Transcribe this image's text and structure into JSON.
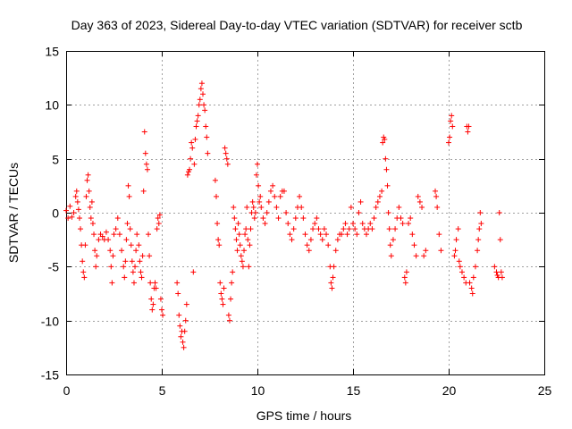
{
  "chart_data": {
    "type": "scatter",
    "title": "Day 363 of 2023, Sidereal Day-to-day VTEC variation (SDTVAR) for receiver sctb",
    "xlabel": "GPS time / hours",
    "ylabel": "SDTVAR / TECUs",
    "xlim": [
      0,
      25
    ],
    "ylim": [
      -15,
      15
    ],
    "grid": true,
    "marker": "plus",
    "color": "#ff0000",
    "x_ticks": [
      0,
      5,
      10,
      15,
      20,
      25
    ],
    "x_tick_labels": [
      "0",
      "5",
      "10",
      "15",
      "20",
      "25"
    ],
    "y_ticks": [
      -15,
      -10,
      -5,
      0,
      5,
      10,
      15
    ],
    "y_tick_labels": [
      "-15",
      "-10",
      "-5",
      "0",
      "5",
      "10",
      "15"
    ],
    "series": [
      {
        "name": "sctb",
        "points": [
          [
            0.0,
            0.2
          ],
          [
            0.1,
            -0.5
          ],
          [
            0.2,
            0.6
          ],
          [
            0.3,
            -0.4
          ],
          [
            0.4,
            0.0
          ],
          [
            0.5,
            1.5
          ],
          [
            0.55,
            2.0
          ],
          [
            0.6,
            1.0
          ],
          [
            0.65,
            0.3
          ],
          [
            0.7,
            -0.5
          ],
          [
            0.75,
            -1.5
          ],
          [
            0.8,
            -3.0
          ],
          [
            0.85,
            -4.5
          ],
          [
            0.9,
            -5.5
          ],
          [
            0.95,
            -6.0
          ],
          [
            1.0,
            -3.0
          ],
          [
            1.05,
            1.5
          ],
          [
            1.1,
            3.0
          ],
          [
            1.15,
            3.5
          ],
          [
            1.2,
            2.0
          ],
          [
            1.25,
            0.5
          ],
          [
            1.3,
            -0.5
          ],
          [
            1.35,
            1.0
          ],
          [
            1.4,
            -1.0
          ],
          [
            1.45,
            -2.0
          ],
          [
            1.5,
            -3.5
          ],
          [
            1.55,
            -5.0
          ],
          [
            1.6,
            -4.0
          ],
          [
            1.7,
            -2.5
          ],
          [
            1.8,
            -2.0
          ],
          [
            1.9,
            -2.2
          ],
          [
            2.0,
            -2.5
          ],
          [
            2.1,
            -1.8
          ],
          [
            2.2,
            -2.5
          ],
          [
            2.3,
            -3.5
          ],
          [
            2.35,
            -5.0
          ],
          [
            2.4,
            -6.5
          ],
          [
            2.45,
            -4.0
          ],
          [
            2.5,
            -2.0
          ],
          [
            2.6,
            -1.5
          ],
          [
            2.7,
            -0.5
          ],
          [
            2.8,
            -2.0
          ],
          [
            2.9,
            -3.5
          ],
          [
            3.0,
            -5.0
          ],
          [
            3.05,
            -6.0
          ],
          [
            3.1,
            -4.5
          ],
          [
            3.15,
            -2.5
          ],
          [
            3.2,
            -1.0
          ],
          [
            3.25,
            2.5
          ],
          [
            3.3,
            1.5
          ],
          [
            3.35,
            -1.5
          ],
          [
            3.4,
            -3.0
          ],
          [
            3.45,
            -4.5
          ],
          [
            3.5,
            -5.5
          ],
          [
            3.55,
            -6.5
          ],
          [
            3.6,
            -5.0
          ],
          [
            3.65,
            -3.5
          ],
          [
            3.7,
            -2.0
          ],
          [
            3.8,
            -3.0
          ],
          [
            3.85,
            -4.5
          ],
          [
            3.9,
            -5.5
          ],
          [
            3.95,
            -6.0
          ],
          [
            4.0,
            -4.0
          ],
          [
            4.05,
            2.0
          ],
          [
            4.1,
            7.5
          ],
          [
            4.15,
            5.5
          ],
          [
            4.2,
            4.5
          ],
          [
            4.25,
            4.0
          ],
          [
            4.3,
            -2.0
          ],
          [
            4.35,
            -4.0
          ],
          [
            4.4,
            -6.5
          ],
          [
            4.45,
            -8.0
          ],
          [
            4.5,
            -9.0
          ],
          [
            4.55,
            -8.5
          ],
          [
            4.6,
            -7.0
          ],
          [
            4.65,
            -6.5
          ],
          [
            4.7,
            -7.0
          ],
          [
            4.75,
            -1.5
          ],
          [
            4.8,
            -0.5
          ],
          [
            4.85,
            -1.0
          ],
          [
            4.9,
            -0.2
          ],
          [
            4.95,
            -8.0
          ],
          [
            5.0,
            -9.0
          ],
          [
            5.05,
            -9.5
          ],
          [
            5.8,
            -6.5
          ],
          [
            5.85,
            -7.5
          ],
          [
            5.9,
            -9.5
          ],
          [
            5.95,
            -10.5
          ],
          [
            6.0,
            -11.5
          ],
          [
            6.05,
            -11.0
          ],
          [
            6.1,
            -12.0
          ],
          [
            6.15,
            -12.5
          ],
          [
            6.2,
            -11.0
          ],
          [
            6.25,
            -10.0
          ],
          [
            6.3,
            -8.5
          ],
          [
            6.35,
            3.5
          ],
          [
            6.4,
            3.8
          ],
          [
            6.45,
            4.0
          ],
          [
            6.5,
            5.0
          ],
          [
            6.55,
            6.5
          ],
          [
            6.6,
            6.0
          ],
          [
            6.65,
            -5.5
          ],
          [
            6.7,
            4.5
          ],
          [
            6.75,
            6.8
          ],
          [
            6.8,
            8.0
          ],
          [
            6.85,
            8.5
          ],
          [
            6.9,
            9.0
          ],
          [
            6.95,
            10.0
          ],
          [
            7.0,
            10.5
          ],
          [
            7.05,
            11.5
          ],
          [
            7.1,
            12.0
          ],
          [
            7.15,
            11.0
          ],
          [
            7.2,
            10.0
          ],
          [
            7.25,
            9.5
          ],
          [
            7.3,
            8.0
          ],
          [
            7.35,
            7.0
          ],
          [
            7.4,
            5.5
          ],
          [
            7.8,
            3.0
          ],
          [
            7.85,
            1.5
          ],
          [
            7.9,
            -1.0
          ],
          [
            7.95,
            -2.5
          ],
          [
            8.0,
            -3.0
          ],
          [
            8.05,
            -6.5
          ],
          [
            8.1,
            -7.5
          ],
          [
            8.15,
            -8.0
          ],
          [
            8.2,
            -8.5
          ],
          [
            8.25,
            -7.0
          ],
          [
            8.3,
            6.0
          ],
          [
            8.35,
            5.5
          ],
          [
            8.4,
            5.0
          ],
          [
            8.45,
            4.5
          ],
          [
            8.5,
            -9.5
          ],
          [
            8.55,
            -10.0
          ],
          [
            8.6,
            -8.0
          ],
          [
            8.65,
            -6.5
          ],
          [
            8.7,
            -5.5
          ],
          [
            8.75,
            0.5
          ],
          [
            8.8,
            -0.5
          ],
          [
            8.85,
            -1.5
          ],
          [
            8.9,
            -2.5
          ],
          [
            8.95,
            -3.5
          ],
          [
            9.0,
            -1.0
          ],
          [
            9.05,
            -2.0
          ],
          [
            9.1,
            -3.0
          ],
          [
            9.15,
            -4.0
          ],
          [
            9.2,
            -4.5
          ],
          [
            9.25,
            -5.0
          ],
          [
            9.3,
            -3.5
          ],
          [
            9.35,
            -2.0
          ],
          [
            9.4,
            -1.5
          ],
          [
            9.45,
            0.5
          ],
          [
            9.5,
            -2.5
          ],
          [
            9.55,
            -5.0
          ],
          [
            9.6,
            -3.0
          ],
          [
            9.65,
            -1.5
          ],
          [
            9.7,
            0.0
          ],
          [
            9.75,
            1.0
          ],
          [
            9.8,
            0.5
          ],
          [
            9.85,
            -0.5
          ],
          [
            9.9,
            0.0
          ],
          [
            9.95,
            3.5
          ],
          [
            10.0,
            4.5
          ],
          [
            10.05,
            2.5
          ],
          [
            10.1,
            1.0
          ],
          [
            10.15,
            1.5
          ],
          [
            10.2,
            0.5
          ],
          [
            10.3,
            -0.5
          ],
          [
            10.4,
            -1.0
          ],
          [
            10.5,
            0.0
          ],
          [
            10.6,
            1.0
          ],
          [
            10.7,
            2.0
          ],
          [
            10.8,
            2.5
          ],
          [
            10.9,
            1.5
          ],
          [
            11.0,
            0.5
          ],
          [
            11.1,
            -0.5
          ],
          [
            11.2,
            1.5
          ],
          [
            11.3,
            2.0
          ],
          [
            11.4,
            2.0
          ],
          [
            11.5,
            0.0
          ],
          [
            11.6,
            -1.0
          ],
          [
            11.7,
            -2.0
          ],
          [
            11.8,
            -2.5
          ],
          [
            11.9,
            -1.5
          ],
          [
            12.0,
            -0.5
          ],
          [
            12.1,
            0.5
          ],
          [
            12.2,
            1.5
          ],
          [
            12.3,
            0.5
          ],
          [
            12.4,
            -0.5
          ],
          [
            12.5,
            -2.0
          ],
          [
            12.6,
            -3.0
          ],
          [
            12.7,
            -3.5
          ],
          [
            12.8,
            -2.5
          ],
          [
            12.9,
            -1.5
          ],
          [
            13.0,
            -1.0
          ],
          [
            13.1,
            -0.5
          ],
          [
            13.2,
            -1.5
          ],
          [
            13.3,
            -2.0
          ],
          [
            13.4,
            -2.5
          ],
          [
            13.5,
            -1.5
          ],
          [
            13.6,
            -2.0
          ],
          [
            13.7,
            -3.0
          ],
          [
            13.8,
            -5.0
          ],
          [
            13.85,
            -6.5
          ],
          [
            13.9,
            -7.0
          ],
          [
            13.95,
            -6.0
          ],
          [
            14.0,
            -5.0
          ],
          [
            14.1,
            -3.5
          ],
          [
            14.2,
            -2.5
          ],
          [
            14.3,
            -2.0
          ],
          [
            14.4,
            -2.0
          ],
          [
            14.5,
            -1.5
          ],
          [
            14.6,
            -1.0
          ],
          [
            14.7,
            -2.0
          ],
          [
            14.8,
            -1.5
          ],
          [
            14.9,
            0.5
          ],
          [
            15.0,
            -1.0
          ],
          [
            15.1,
            -1.5
          ],
          [
            15.2,
            -2.0
          ],
          [
            15.3,
            0.0
          ],
          [
            15.4,
            1.0
          ],
          [
            15.5,
            -1.0
          ],
          [
            15.6,
            -1.5
          ],
          [
            15.7,
            -2.0
          ],
          [
            15.8,
            -1.5
          ],
          [
            15.9,
            -1.0
          ],
          [
            16.0,
            -1.5
          ],
          [
            16.1,
            -0.5
          ],
          [
            16.2,
            0.5
          ],
          [
            16.3,
            1.0
          ],
          [
            16.4,
            1.5
          ],
          [
            16.5,
            2.0
          ],
          [
            16.55,
            6.5
          ],
          [
            16.6,
            7.0
          ],
          [
            16.65,
            6.8
          ],
          [
            16.7,
            5.0
          ],
          [
            16.75,
            4.0
          ],
          [
            16.8,
            2.5
          ],
          [
            16.85,
            0.0
          ],
          [
            16.9,
            -1.5
          ],
          [
            16.95,
            -3.0
          ],
          [
            17.0,
            -4.0
          ],
          [
            17.1,
            -2.5
          ],
          [
            17.2,
            -1.5
          ],
          [
            17.3,
            -0.5
          ],
          [
            17.4,
            0.5
          ],
          [
            17.5,
            -0.5
          ],
          [
            17.6,
            -1.0
          ],
          [
            17.7,
            -6.0
          ],
          [
            17.75,
            -6.5
          ],
          [
            17.8,
            -5.5
          ],
          [
            17.9,
            -1.0
          ],
          [
            18.0,
            -0.5
          ],
          [
            18.1,
            -2.0
          ],
          [
            18.2,
            -3.0
          ],
          [
            18.3,
            -4.0
          ],
          [
            18.4,
            1.5
          ],
          [
            18.5,
            1.0
          ],
          [
            18.6,
            0.5
          ],
          [
            18.7,
            -4.0
          ],
          [
            18.8,
            -3.5
          ],
          [
            19.3,
            2.0
          ],
          [
            19.35,
            1.5
          ],
          [
            19.4,
            0.5
          ],
          [
            19.5,
            -2.0
          ],
          [
            19.6,
            -3.5
          ],
          [
            20.0,
            6.5
          ],
          [
            20.05,
            7.0
          ],
          [
            20.1,
            8.5
          ],
          [
            20.15,
            9.0
          ],
          [
            20.2,
            8.0
          ],
          [
            20.3,
            -4.0
          ],
          [
            20.35,
            -3.5
          ],
          [
            20.4,
            -2.5
          ],
          [
            20.5,
            -1.5
          ],
          [
            20.55,
            -4.5
          ],
          [
            20.6,
            -5.0
          ],
          [
            20.7,
            -5.5
          ],
          [
            20.8,
            -6.0
          ],
          [
            20.9,
            -6.5
          ],
          [
            20.95,
            8.0
          ],
          [
            21.0,
            7.5
          ],
          [
            21.05,
            8.0
          ],
          [
            21.1,
            -6.5
          ],
          [
            21.2,
            -7.0
          ],
          [
            21.25,
            -7.5
          ],
          [
            21.3,
            -6.0
          ],
          [
            21.4,
            -5.0
          ],
          [
            21.5,
            -3.5
          ],
          [
            21.55,
            -2.5
          ],
          [
            21.6,
            -1.5
          ],
          [
            21.65,
            0.0
          ],
          [
            21.7,
            -1.0
          ],
          [
            22.4,
            -5.0
          ],
          [
            22.5,
            -5.5
          ],
          [
            22.55,
            -5.8
          ],
          [
            22.6,
            -6.0
          ],
          [
            22.65,
            0.0
          ],
          [
            22.7,
            -2.5
          ],
          [
            22.75,
            -5.5
          ],
          [
            22.8,
            -6.0
          ]
        ]
      }
    ]
  }
}
